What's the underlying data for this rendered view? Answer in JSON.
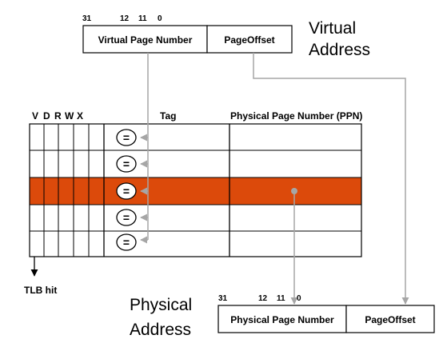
{
  "virtual_address": {
    "bit_labels": {
      "b31": "31",
      "b12": "12",
      "b11": "11",
      "b0": "0"
    },
    "vpn_label": "Virtual Page Number",
    "offset_label": "PageOffset",
    "title_line1": "Virtual",
    "title_line2": "Address"
  },
  "tlb": {
    "flag_headers": [
      "V",
      "D",
      "R",
      "W",
      "X"
    ],
    "tag_header": "Tag",
    "ppn_header": "Physical Page Number (PPN)",
    "comparator_symbol": "=",
    "row_count": 5,
    "hit_row": 3,
    "hit_label": "TLB hit",
    "hit_color": "#dc4a0b"
  },
  "physical_address": {
    "bit_labels": {
      "b31": "31",
      "b12": "12",
      "b11": "11",
      "b0": "0"
    },
    "ppn_label": "Physical Page Number",
    "offset_label": "PageOffset",
    "title_line1": "Physical",
    "title_line2": "Address"
  },
  "colors": {
    "arrow": "#a6a6a6",
    "line": "#000000"
  }
}
